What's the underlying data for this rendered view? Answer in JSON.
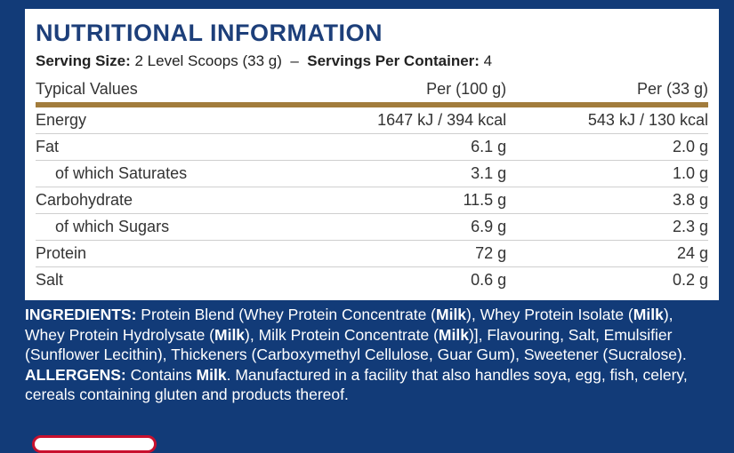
{
  "panel": {
    "title": "NUTRITIONAL INFORMATION",
    "serving": {
      "label": "Serving Size:",
      "value": "2 Level Scoops (33 g)",
      "separator": "–",
      "per_container_label": "Servings Per Container:",
      "per_container_value": "4"
    },
    "table": {
      "header": [
        "Typical Values",
        "Per (100 g)",
        "Per (33 g)"
      ],
      "rows": [
        {
          "cells": [
            "Energy",
            "1647 kJ / 394 kcal",
            "543 kJ / 130 kcal"
          ],
          "indent": false
        },
        {
          "cells": [
            "Fat",
            "6.1 g",
            "2.0 g"
          ],
          "indent": false
        },
        {
          "cells": [
            "of which Saturates",
            "3.1 g",
            "1.0 g"
          ],
          "indent": true
        },
        {
          "cells": [
            "Carbohydrate",
            "11.5 g",
            "3.8 g"
          ],
          "indent": false
        },
        {
          "cells": [
            "of which Sugars",
            "6.9 g",
            "2.3 g"
          ],
          "indent": true
        },
        {
          "cells": [
            "Protein",
            "72 g",
            "24 g"
          ],
          "indent": false
        },
        {
          "cells": [
            "Salt",
            "0.6 g",
            "0.2 g"
          ],
          "indent": false
        }
      ]
    }
  },
  "ingredients": [
    {
      "text": "INGREDIENTS:",
      "bold": true
    },
    {
      "text": " Protein Blend (Whey Protein Concentrate (",
      "bold": false
    },
    {
      "text": "Milk",
      "bold": true
    },
    {
      "text": "), Whey Protein Isolate (",
      "bold": false
    },
    {
      "text": "Milk",
      "bold": true
    },
    {
      "text": "), Whey Protein Hydrolysate (",
      "bold": false
    },
    {
      "text": "Milk",
      "bold": true
    },
    {
      "text": "), Milk Protein Concentrate (",
      "bold": false
    },
    {
      "text": "Milk",
      "bold": true
    },
    {
      "text": ")], Flavouring, Salt, Emulsifier (Sunflower Lecithin), Thickeners (Carboxymethyl Cellulose, Guar Gum), Sweetener (Sucralose). ",
      "bold": false
    },
    {
      "text": "ALLERGENS:",
      "bold": true
    },
    {
      "text": " Contains ",
      "bold": false
    },
    {
      "text": "Milk",
      "bold": true
    },
    {
      "text": ". Manufactured in a facility that also handles soya, egg, fish, celery, cereals containing gluten and products thereof.",
      "bold": false
    }
  ]
}
